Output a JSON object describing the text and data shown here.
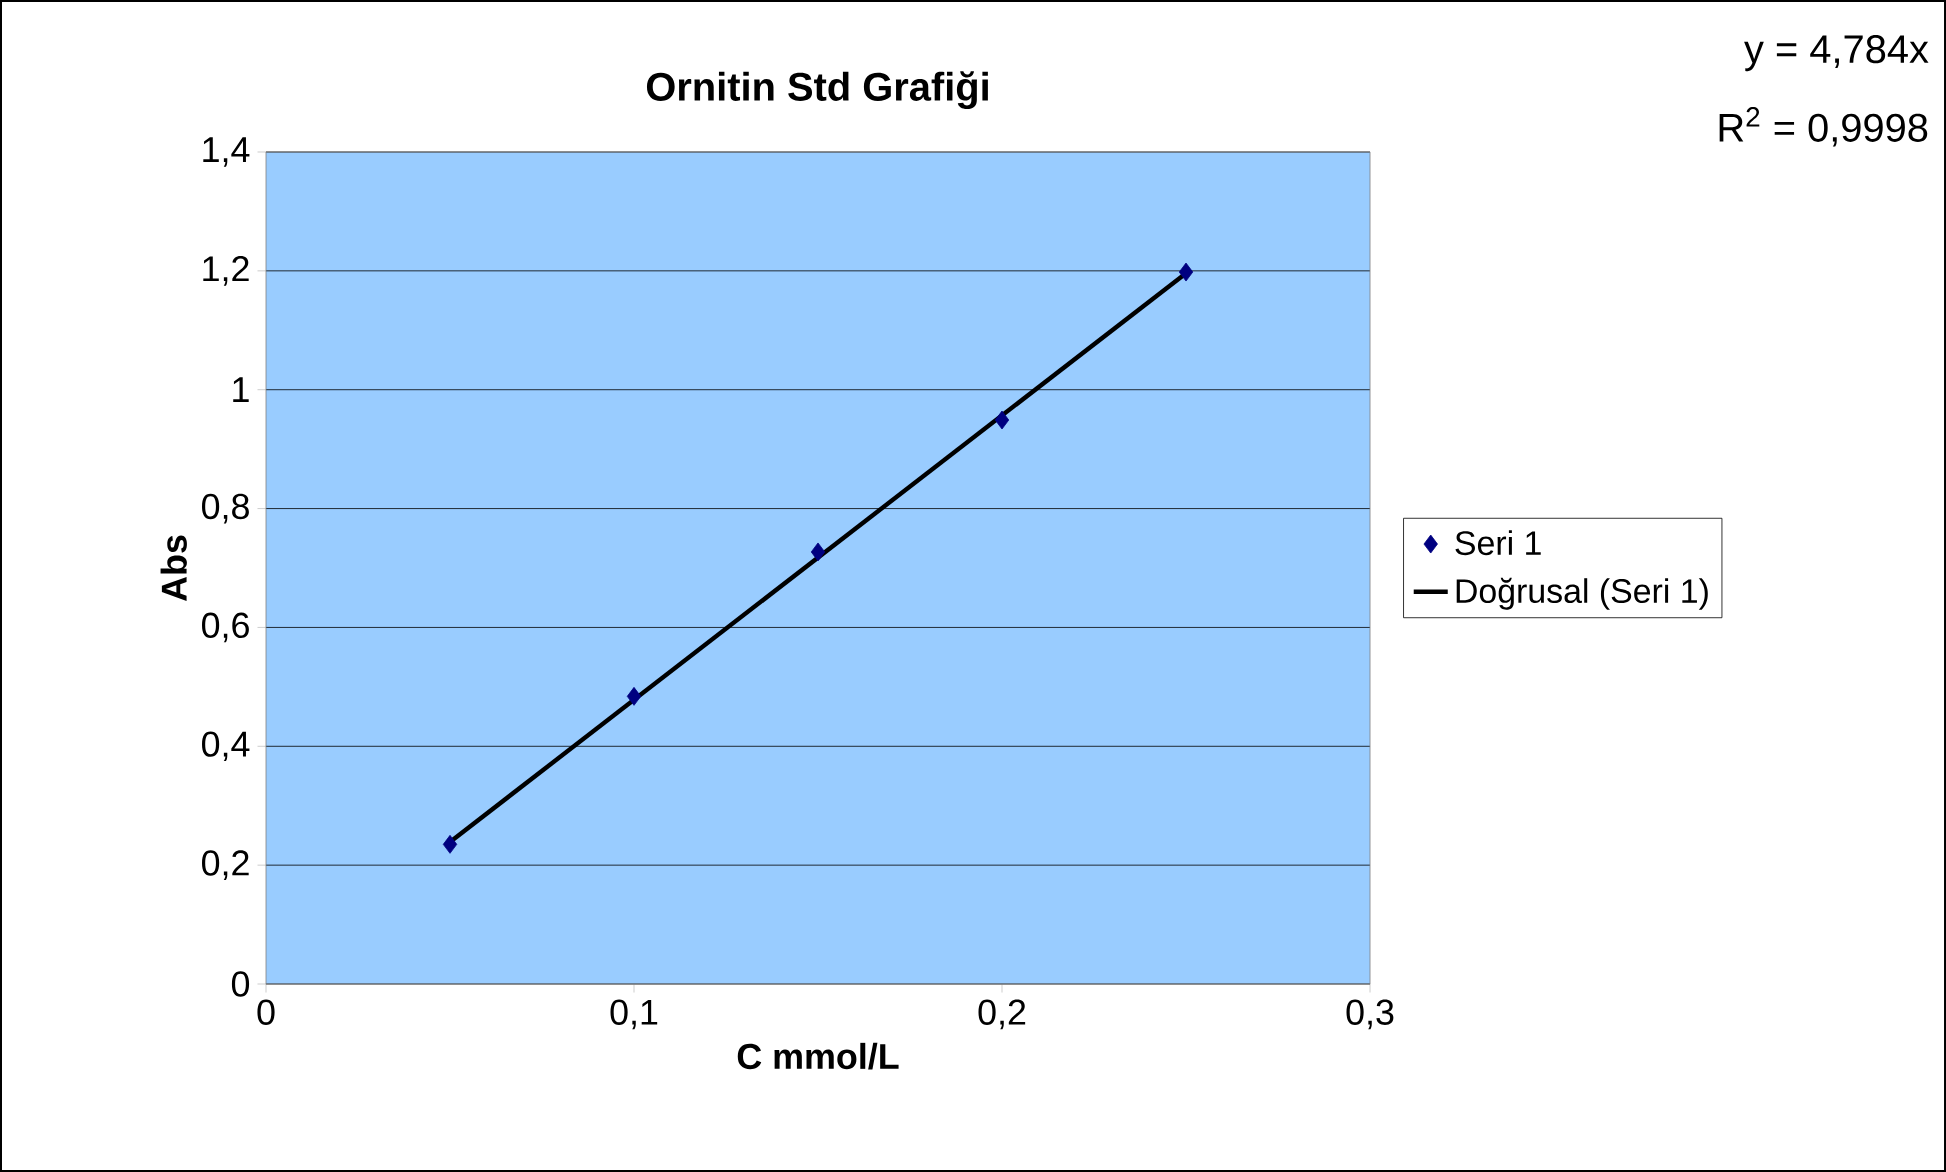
{
  "chart_data": {
    "type": "scatter",
    "title": "Ornitin Std Grafiği",
    "xlabel": "C mmol/L",
    "ylabel": "Abs",
    "xlim": [
      0,
      0.3
    ],
    "ylim": [
      0,
      1.4
    ],
    "xticks": [
      0,
      {
        "value": 0.1,
        "label": "0,1"
      },
      {
        "value": 0.2,
        "label": "0,2"
      },
      {
        "value": 0.3,
        "label": "0,3"
      }
    ],
    "yticks": [
      0,
      {
        "value": 0.2,
        "label": "0,2"
      },
      {
        "value": 0.4,
        "label": "0,4"
      },
      {
        "value": 0.6,
        "label": "0,6"
      },
      {
        "value": 0.8,
        "label": "0,8"
      },
      1,
      {
        "value": 1.2,
        "label": "1,2"
      },
      {
        "value": 1.4,
        "label": "1,4"
      }
    ],
    "grid": "y",
    "legend": "right",
    "marker": "diamond",
    "annotations": [
      "y = 4,784x",
      "R$^{2}$ = 0,9998"
    ],
    "series": [
      {
        "name": "Seri 1",
        "color": "#000080",
        "x": [
          0.05,
          0.1,
          0.15,
          0.2,
          0.25
        ],
        "values": [
          0.235,
          0.484,
          0.727,
          0.949,
          1.198
        ]
      },
      {
        "name": "Doğrusal (Seri 1)",
        "type": "line",
        "marker": "none",
        "color": "#000000",
        "x": [
          0.05,
          0.25
        ],
        "values": [
          0.239,
          1.196
        ]
      }
    ]
  }
}
